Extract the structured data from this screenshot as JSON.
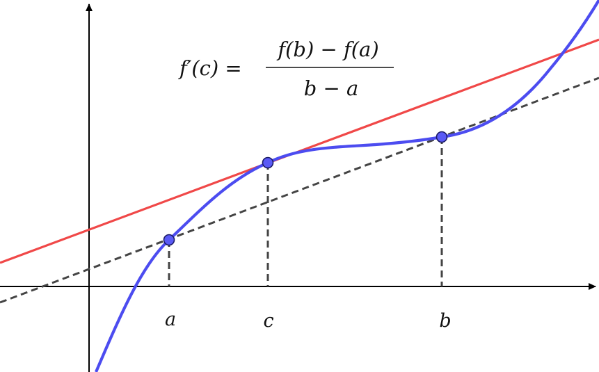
{
  "formula": {
    "lhs": "f′(c) =",
    "numerator": "f(b) − f(a)",
    "denominator": "b − a"
  },
  "points": [
    {
      "id": "a",
      "label": "a"
    },
    {
      "id": "c",
      "label": "c"
    },
    {
      "id": "b",
      "label": "b"
    }
  ],
  "colors": {
    "curve": "#4c4cf0",
    "tangent": "#f04848",
    "secant": "#444444",
    "axes": "#000000",
    "point_fill": "#5a5af5",
    "point_stroke": "#1a1a66"
  }
}
